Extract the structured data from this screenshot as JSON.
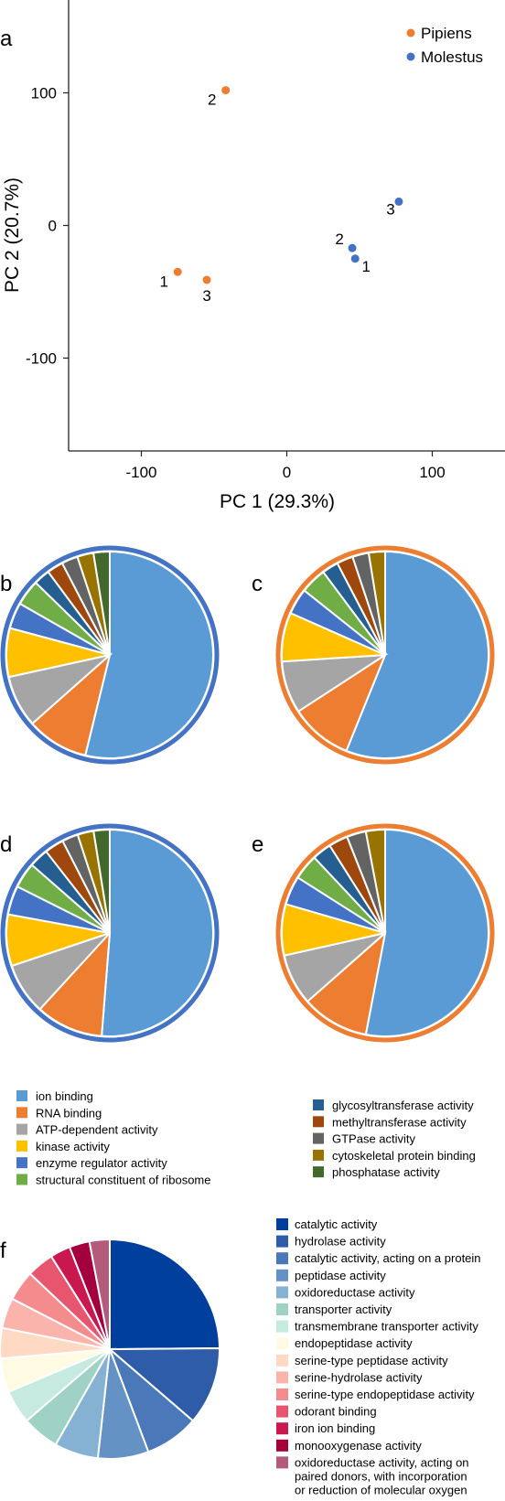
{
  "panel_labels": {
    "a": "a",
    "b": "b",
    "c": "c",
    "d": "d",
    "e": "e",
    "f": "f"
  },
  "colors": {
    "pipiens": "#ed7d31",
    "molestus": "#4472c4",
    "ring_blue": "#4472c4",
    "ring_orange": "#ed7d31"
  },
  "chart_data": [
    {
      "panel": "a",
      "type": "scatter",
      "xlabel": "PC 1 (29.3%)",
      "ylabel": "PC 2 (20.7%)",
      "xlim": [
        -150,
        150
      ],
      "ylim": [
        -170,
        170
      ],
      "xticks": [
        -100,
        0,
        100
      ],
      "xtick_labels": [
        "-100",
        "0",
        "100"
      ],
      "yticks": [
        100,
        0,
        -100
      ],
      "ytick_labels": [
        "100",
        "0",
        "-100"
      ],
      "legend_position": "top-right",
      "series": [
        {
          "name": "Pipiens",
          "color": "#ed7d31",
          "points": [
            {
              "x": -75,
              "y": -35,
              "label": "1"
            },
            {
              "x": -42,
              "y": 102,
              "label": "2"
            },
            {
              "x": -55,
              "y": -41,
              "label": "3"
            }
          ]
        },
        {
          "name": "Molestus",
          "color": "#4472c4",
          "points": [
            {
              "x": 47,
              "y": -25,
              "label": "1"
            },
            {
              "x": 45,
              "y": -17,
              "label": "2"
            },
            {
              "x": 77,
              "y": 18,
              "label": "3"
            }
          ]
        }
      ]
    },
    {
      "panel": "b",
      "type": "pie",
      "ring_color": "#4472c4",
      "categories": [
        "ion binding",
        "RNA binding",
        "ATP-dependent activity",
        "kinase activity",
        "enzyme regulator activity",
        "structural constituent of ribosome",
        "glycosyltransferase activity",
        "methyltransferase activity",
        "GTPase activity",
        "cytoskeletal protein binding",
        "phosphatase activity"
      ],
      "values": [
        53,
        9.5,
        8,
        7.5,
        4,
        4,
        2.5,
        2.5,
        2.5,
        2.5,
        2.5
      ]
    },
    {
      "panel": "c",
      "type": "pie",
      "ring_color": "#ed7d31",
      "categories": [
        "ion binding",
        "RNA binding",
        "ATP-dependent activity",
        "kinase activity",
        "enzyme regulator activity",
        "structural constituent of ribosome",
        "glycosyltransferase activity",
        "methyltransferase activity",
        "GTPase activity",
        "cytoskeletal protein binding"
      ],
      "values": [
        55,
        9.5,
        8,
        7.5,
        4,
        4,
        2.5,
        2.5,
        2.5,
        2.5
      ]
    },
    {
      "panel": "d",
      "type": "pie",
      "ring_color": "#4472c4",
      "categories": [
        "ion binding",
        "RNA binding",
        "ATP-dependent activity",
        "kinase activity",
        "enzyme regulator activity",
        "structural constituent of ribosome",
        "glycosyltransferase activity",
        "methyltransferase activity",
        "GTPase activity",
        "cytoskeletal protein binding",
        "phosphatase activity"
      ],
      "values": [
        51,
        10.5,
        8,
        8,
        4.5,
        4,
        3,
        3,
        2.5,
        2.5,
        2.5
      ]
    },
    {
      "panel": "e",
      "type": "pie",
      "ring_color": "#ed7d31",
      "categories": [
        "ion binding",
        "RNA binding",
        "ATP-dependent activity",
        "kinase activity",
        "enzyme regulator activity",
        "structural constituent of ribosome",
        "glycosyltransferase activity",
        "methyltransferase activity",
        "GTPase activity",
        "cytoskeletal protein binding"
      ],
      "values": [
        53,
        10.5,
        8,
        8,
        4.5,
        4,
        3,
        3,
        3,
        3
      ]
    },
    {
      "panel": "f",
      "type": "pie",
      "categories": [
        "catalytic activity",
        "hydrolase activity",
        "catalytic activity, acting on a protein",
        "peptidase activity",
        "oxidoreductase activity",
        "transporter activity",
        "transmembrane transporter activity",
        "endopeptidase activity",
        "serine-type peptidase activity",
        "serine-hydrolase activity",
        "serine-type endopeptidase activity",
        "odorant binding",
        "iron ion binding",
        "monooxygenase activity",
        "oxidoreductase activity, acting on paired donors, with incorporation or reduction of molecular oxygen"
      ],
      "values": [
        25,
        11.5,
        8,
        7.5,
        6.5,
        5.5,
        5,
        5,
        4.5,
        4.5,
        4.5,
        4,
        3,
        3,
        3
      ]
    }
  ],
  "go_legend": {
    "left": [
      {
        "label": "ion binding",
        "color": "#5b9bd5"
      },
      {
        "label": "RNA binding",
        "color": "#ed7d31"
      },
      {
        "label": "ATP-dependent activity",
        "color": "#a5a5a5"
      },
      {
        "label": "kinase activity",
        "color": "#ffc000"
      },
      {
        "label": "enzyme regulator activity",
        "color": "#4472c4"
      },
      {
        "label": "structural constituent of ribosome",
        "color": "#70ad47"
      }
    ],
    "right": [
      {
        "label": "glycosyltransferase activity",
        "color": "#255e91"
      },
      {
        "label": "methyltransferase activity",
        "color": "#9e480e"
      },
      {
        "label": "GTPase activity",
        "color": "#636363"
      },
      {
        "label": "cytoskeletal protein binding",
        "color": "#997300"
      },
      {
        "label": "phosphatase activity",
        "color": "#43682b"
      }
    ]
  },
  "f_legend": [
    {
      "label": "catalytic activity",
      "color": "#003f9b"
    },
    {
      "label": "hydrolase activity",
      "color": "#2f5ca8"
    },
    {
      "label": "catalytic activity, acting on a protein",
      "color": "#4a78b8"
    },
    {
      "label": "peptidase activity",
      "color": "#6592c4"
    },
    {
      "label": "oxidoreductase activity",
      "color": "#85b1d2"
    },
    {
      "label": "transporter activity",
      "color": "#9fd1c4"
    },
    {
      "label": "transmembrane transporter activity",
      "color": "#c6eadf"
    },
    {
      "label": "endopeptidase activity",
      "color": "#fffbe3"
    },
    {
      "label": "serine-type peptidase activity",
      "color": "#ffd9c4"
    },
    {
      "label": "serine-hydrolase activity",
      "color": "#fbb4ab"
    },
    {
      "label": "serine-type endopeptidase activity",
      "color": "#f48c8e"
    },
    {
      "label": "odorant binding",
      "color": "#e8556e"
    },
    {
      "label": "iron ion binding",
      "color": "#c9174f"
    },
    {
      "label": "monooxygenase activity",
      "color": "#a3003d"
    },
    {
      "label": "oxidoreductase activity, acting on",
      "color": "#b45a7a",
      "extra_lines": [
        "paired donors, with incorporation",
        "or reduction of molecular oxygen"
      ]
    }
  ]
}
